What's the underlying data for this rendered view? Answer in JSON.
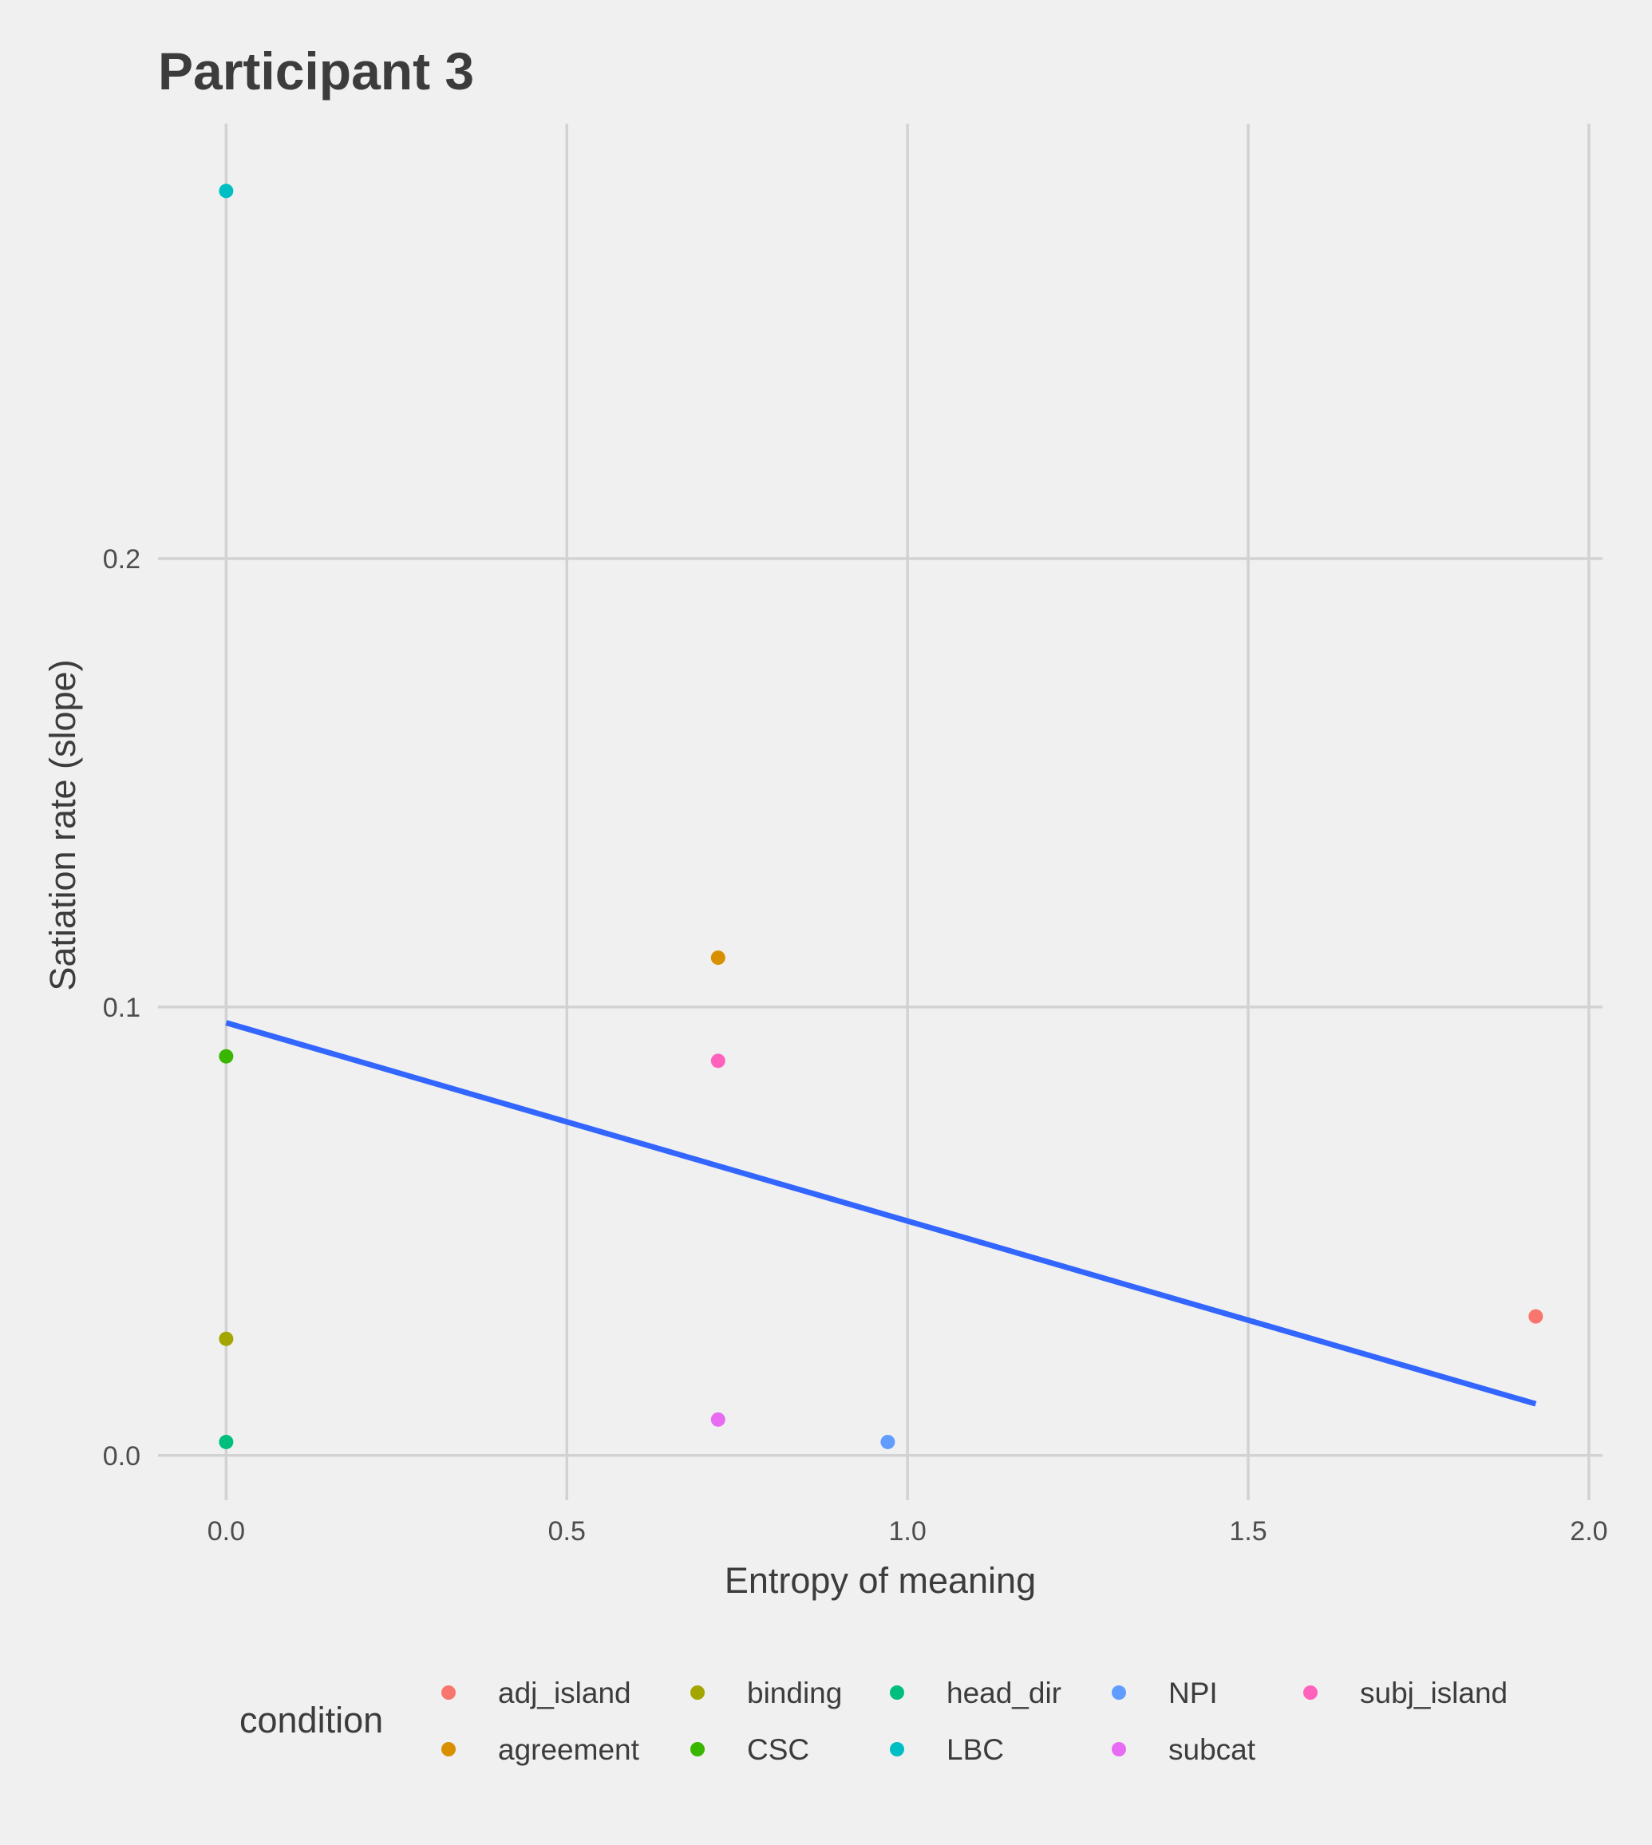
{
  "chart_data": {
    "type": "scatter",
    "title": "Participant 3",
    "xlabel": "Entropy of meaning",
    "ylabel": "Satiation rate (slope)",
    "xlim": [
      -0.1,
      2.02
    ],
    "ylim": [
      -0.01,
      0.297
    ],
    "x_ticks": [
      0.0,
      0.5,
      1.0,
      1.5,
      2.0
    ],
    "x_tick_labels": [
      "0.0",
      "0.5",
      "1.0",
      "1.5",
      "2.0"
    ],
    "y_ticks": [
      0.0,
      0.1,
      0.2
    ],
    "y_tick_labels": [
      "0.0",
      "0.1",
      "0.2"
    ],
    "grid": true,
    "legend": {
      "title": "condition",
      "position": "bottom",
      "entries": [
        {
          "label": "adj_island",
          "color": "#F8766D"
        },
        {
          "label": "agreement",
          "color": "#D89000"
        },
        {
          "label": "binding",
          "color": "#A3A500"
        },
        {
          "label": "CSC",
          "color": "#39B600"
        },
        {
          "label": "head_dir",
          "color": "#00BF7D"
        },
        {
          "label": "LBC",
          "color": "#00BFC4"
        },
        {
          "label": "NPI",
          "color": "#619CFF"
        },
        {
          "label": "subcat",
          "color": "#E76BF3"
        },
        {
          "label": "subj_island",
          "color": "#FF62BC"
        }
      ]
    },
    "points": [
      {
        "condition": "LBC",
        "x": 0.0,
        "y": 0.282
      },
      {
        "condition": "CSC",
        "x": 0.0,
        "y": 0.089
      },
      {
        "condition": "binding",
        "x": 0.0,
        "y": 0.026
      },
      {
        "condition": "head_dir",
        "x": 0.0,
        "y": 0.003
      },
      {
        "condition": "agreement",
        "x": 0.722,
        "y": 0.111
      },
      {
        "condition": "subj_island",
        "x": 0.722,
        "y": 0.088
      },
      {
        "condition": "subcat",
        "x": 0.722,
        "y": 0.008
      },
      {
        "condition": "NPI",
        "x": 0.971,
        "y": 0.003
      },
      {
        "condition": "adj_island",
        "x": 1.922,
        "y": 0.031
      }
    ],
    "trend_line": {
      "color": "#3366FF",
      "points": [
        {
          "x": 0.0,
          "y": 0.0965
        },
        {
          "x": 1.922,
          "y": 0.0115
        }
      ]
    }
  }
}
